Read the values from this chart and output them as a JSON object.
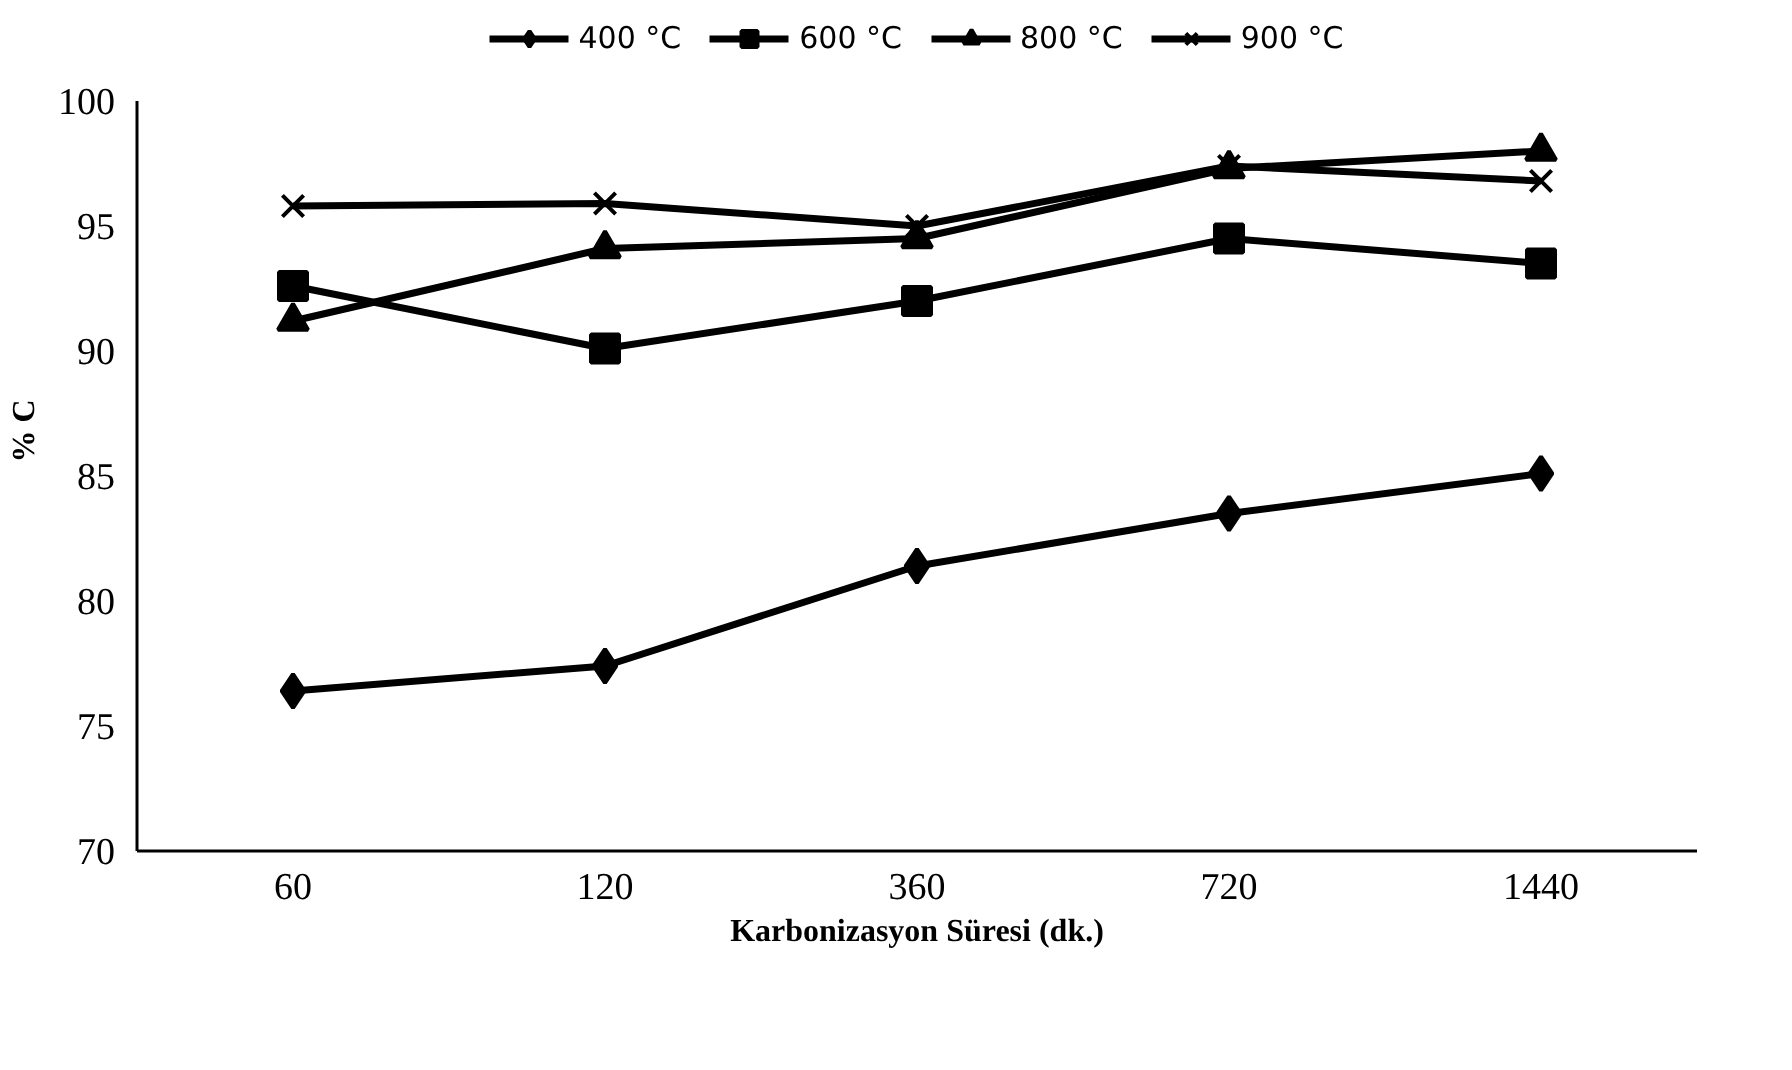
{
  "chart_data": {
    "type": "line",
    "xlabel": "Karbonizasyon Süresi (dk.)",
    "ylabel": "% C",
    "categories": [
      "60",
      "120",
      "360",
      "720",
      "1440"
    ],
    "series": [
      {
        "name": "400 °C",
        "color": "#000000",
        "marker": "diamond",
        "values": [
          76.4,
          77.4,
          81.4,
          83.5,
          85.1
        ]
      },
      {
        "name": "600 °C",
        "color": "#000000",
        "marker": "square",
        "values": [
          92.6,
          90.1,
          92.0,
          94.5,
          93.5
        ]
      },
      {
        "name": "800 °C",
        "color": "#000000",
        "marker": "triangle",
        "values": [
          91.2,
          94.1,
          94.5,
          97.3,
          98.0
        ]
      },
      {
        "name": "900 °C",
        "color": "#000000",
        "marker": "cross",
        "values": [
          95.8,
          95.9,
          95.0,
          97.4,
          96.8
        ]
      }
    ],
    "ylim": [
      70,
      100
    ],
    "yticks": [
      70,
      75,
      80,
      85,
      90,
      95,
      100
    ],
    "grid": false,
    "legend": "top"
  }
}
